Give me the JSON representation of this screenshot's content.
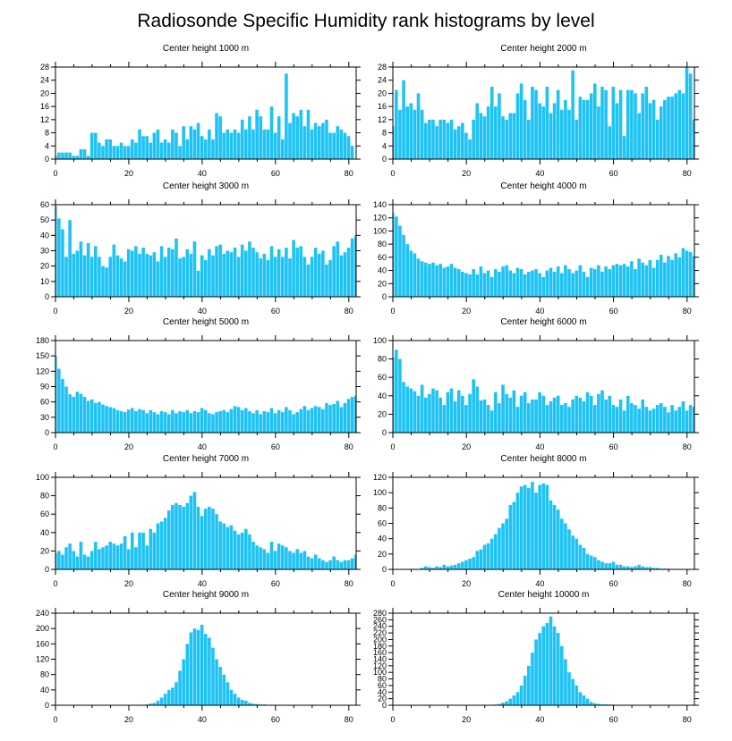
{
  "title": "Radiosonde Specific Humidity rank histograms by level",
  "bar_color": "#1ec3f5",
  "chart_data": [
    {
      "type": "bar",
      "title": "Center height 1000 m",
      "xlim": [
        0,
        82
      ],
      "ylim": [
        0,
        28
      ],
      "yticks": [
        0,
        4,
        8,
        12,
        16,
        20,
        24,
        28
      ],
      "xticks": [
        0,
        20,
        40,
        60,
        80
      ],
      "values": [
        1,
        2,
        2,
        2,
        2,
        1,
        1,
        3,
        3,
        1,
        8,
        8,
        5,
        4,
        6,
        6,
        4,
        4,
        5,
        4,
        4,
        6,
        5,
        9,
        7,
        7,
        5,
        8,
        9,
        5,
        6,
        5,
        9,
        8,
        4,
        10,
        6,
        10,
        9,
        11,
        7,
        6,
        9,
        6,
        14,
        13,
        8,
        9,
        8,
        9,
        8,
        12,
        9,
        13,
        9,
        15,
        13,
        9,
        9,
        16,
        8,
        13,
        6,
        26,
        11,
        14,
        13,
        15,
        10,
        15,
        9,
        11,
        10,
        11,
        12,
        8,
        8,
        10,
        9,
        8,
        7,
        4
      ]
    },
    {
      "type": "bar",
      "title": "Center height 2000 m",
      "xlim": [
        0,
        82
      ],
      "ylim": [
        0,
        28
      ],
      "yticks": [
        0,
        4,
        8,
        12,
        16,
        20,
        24,
        28
      ],
      "xticks": [
        0,
        20,
        40,
        60,
        80
      ],
      "values": [
        10,
        21,
        15,
        24,
        16,
        17,
        15,
        20,
        15,
        11,
        12,
        12,
        10,
        12,
        12,
        11,
        12,
        9,
        10,
        11,
        8,
        6,
        12,
        17,
        14,
        13,
        16,
        22,
        16,
        20,
        13,
        12,
        14,
        14,
        20,
        23,
        18,
        12,
        22,
        21,
        17,
        16,
        22,
        14,
        17,
        21,
        15,
        18,
        15,
        27,
        12,
        19,
        18,
        18,
        20,
        23,
        16,
        22,
        21,
        10,
        22,
        17,
        21,
        7,
        21,
        21,
        20,
        14,
        20,
        22,
        17,
        18,
        12,
        16,
        18,
        19,
        19,
        20,
        21,
        20,
        28,
        26,
        12
      ]
    },
    {
      "type": "bar",
      "title": "Center height 3000 m",
      "xlim": [
        0,
        82
      ],
      "ylim": [
        0,
        60
      ],
      "yticks": [
        0,
        10,
        20,
        30,
        40,
        50,
        60
      ],
      "xticks": [
        0,
        20,
        40,
        60,
        80
      ],
      "values": [
        59,
        51,
        44,
        26,
        50,
        28,
        30,
        36,
        27,
        35,
        26,
        33,
        26,
        20,
        19,
        26,
        34,
        27,
        25,
        23,
        31,
        30,
        33,
        28,
        32,
        28,
        27,
        29,
        23,
        33,
        26,
        32,
        31,
        38,
        25,
        26,
        31,
        28,
        36,
        17,
        27,
        24,
        31,
        27,
        33,
        34,
        28,
        30,
        29,
        32,
        26,
        34,
        30,
        36,
        32,
        29,
        25,
        28,
        24,
        33,
        26,
        31,
        26,
        32,
        25,
        37,
        32,
        33,
        26,
        21,
        26,
        32,
        28,
        30,
        21,
        24,
        33,
        36,
        27,
        29,
        32,
        38,
        40
      ]
    },
    {
      "type": "bar",
      "title": "Center height 4000 m",
      "xlim": [
        0,
        82
      ],
      "ylim": [
        0,
        140
      ],
      "yticks": [
        0,
        20,
        40,
        60,
        80,
        100,
        120,
        140
      ],
      "xticks": [
        0,
        20,
        40,
        60,
        80
      ],
      "values": [
        128,
        122,
        108,
        94,
        80,
        70,
        66,
        58,
        54,
        52,
        50,
        52,
        48,
        50,
        44,
        46,
        50,
        44,
        42,
        38,
        36,
        34,
        42,
        34,
        46,
        36,
        40,
        30,
        42,
        38,
        46,
        48,
        40,
        36,
        44,
        42,
        34,
        38,
        40,
        42,
        36,
        30,
        40,
        44,
        38,
        46,
        36,
        48,
        42,
        36,
        40,
        48,
        38,
        30,
        44,
        42,
        48,
        38,
        46,
        42,
        48,
        50,
        48,
        50,
        46,
        54,
        42,
        58,
        52,
        48,
        56,
        44,
        56,
        64,
        52,
        62,
        56,
        66,
        60,
        74,
        70,
        68,
        62
      ]
    },
    {
      "type": "bar",
      "title": "Center height 5000 m",
      "xlim": [
        0,
        82
      ],
      "ylim": [
        0,
        180
      ],
      "yticks": [
        0,
        30,
        60,
        90,
        120,
        150,
        180
      ],
      "xticks": [
        0,
        20,
        40,
        60,
        80
      ],
      "values": [
        150,
        125,
        105,
        90,
        75,
        70,
        80,
        76,
        70,
        62,
        65,
        58,
        60,
        55,
        52,
        50,
        48,
        44,
        42,
        40,
        45,
        48,
        42,
        46,
        44,
        38,
        44,
        40,
        36,
        42,
        40,
        36,
        44,
        38,
        42,
        40,
        44,
        38,
        42,
        40,
        48,
        44,
        38,
        36,
        40,
        42,
        44,
        40,
        46,
        52,
        50,
        44,
        48,
        42,
        38,
        44,
        36,
        42,
        40,
        48,
        38,
        44,
        40,
        50,
        44,
        36,
        40,
        46,
        52,
        44,
        48,
        52,
        50,
        46,
        58,
        54,
        56,
        62,
        50,
        58,
        66,
        70,
        72
      ]
    },
    {
      "type": "bar",
      "title": "Center height 6000 m",
      "xlim": [
        0,
        82
      ],
      "ylim": [
        0,
        100
      ],
      "yticks": [
        0,
        20,
        40,
        60,
        80,
        100
      ],
      "xticks": [
        0,
        20,
        40,
        60,
        80
      ],
      "values": [
        82,
        90,
        80,
        55,
        50,
        48,
        45,
        40,
        52,
        38,
        42,
        48,
        46,
        38,
        30,
        44,
        48,
        34,
        46,
        40,
        30,
        42,
        58,
        50,
        35,
        36,
        30,
        24,
        44,
        32,
        52,
        42,
        38,
        46,
        28,
        40,
        44,
        32,
        36,
        36,
        44,
        40,
        30,
        34,
        38,
        40,
        30,
        32,
        28,
        36,
        40,
        38,
        34,
        44,
        40,
        30,
        42,
        46,
        36,
        40,
        30,
        28,
        36,
        24,
        40,
        32,
        30,
        26,
        36,
        28,
        24,
        26,
        30,
        32,
        28,
        22,
        30,
        24,
        28,
        34,
        24,
        30,
        28
      ]
    },
    {
      "type": "bar",
      "title": "Center height 7000 m",
      "xlim": [
        0,
        82
      ],
      "ylim": [
        0,
        100
      ],
      "yticks": [
        0,
        20,
        40,
        60,
        80,
        100
      ],
      "xticks": [
        0,
        20,
        40,
        60,
        80
      ],
      "values": [
        18,
        20,
        16,
        24,
        28,
        20,
        14,
        30,
        16,
        14,
        20,
        30,
        22,
        24,
        26,
        30,
        28,
        26,
        28,
        36,
        22,
        40,
        24,
        40,
        40,
        26,
        44,
        40,
        50,
        52,
        56,
        64,
        70,
        72,
        70,
        68,
        72,
        80,
        84,
        68,
        58,
        66,
        68,
        66,
        60,
        52,
        50,
        46,
        48,
        42,
        38,
        40,
        44,
        38,
        30,
        26,
        24,
        22,
        18,
        30,
        20,
        28,
        26,
        24,
        20,
        18,
        22,
        18,
        20,
        14,
        12,
        16,
        12,
        10,
        8,
        10,
        14,
        10,
        8,
        10,
        10,
        12,
        16
      ]
    },
    {
      "type": "bar",
      "title": "Center height 8000 m",
      "xlim": [
        0,
        82
      ],
      "ylim": [
        0,
        120
      ],
      "yticks": [
        0,
        20,
        40,
        60,
        80,
        100,
        120
      ],
      "xticks": [
        0,
        20,
        40,
        60,
        80
      ],
      "values": [
        0,
        0,
        0,
        0,
        0,
        0,
        0,
        0,
        2,
        4,
        3,
        2,
        4,
        3,
        6,
        4,
        5,
        6,
        8,
        10,
        12,
        14,
        16,
        24,
        26,
        32,
        34,
        40,
        46,
        54,
        60,
        66,
        84,
        88,
        100,
        108,
        110,
        106,
        114,
        100,
        110,
        112,
        110,
        90,
        84,
        78,
        66,
        60,
        52,
        44,
        40,
        32,
        28,
        20,
        18,
        16,
        12,
        10,
        8,
        8,
        10,
        6,
        6,
        4,
        4,
        3,
        4,
        6,
        4,
        3,
        3,
        2,
        2,
        1,
        1,
        1,
        0,
        0,
        0,
        0,
        0,
        0,
        0
      ]
    },
    {
      "type": "bar",
      "title": "Center height 9000 m",
      "xlim": [
        0,
        82
      ],
      "ylim": [
        0,
        240
      ],
      "yticks": [
        0,
        40,
        80,
        120,
        160,
        200,
        240
      ],
      "xticks": [
        0,
        20,
        40,
        60,
        80
      ],
      "values": [
        0,
        0,
        0,
        0,
        0,
        0,
        0,
        0,
        0,
        0,
        0,
        0,
        0,
        0,
        0,
        0,
        0,
        0,
        0,
        0,
        0,
        0,
        0,
        0,
        0,
        2,
        4,
        6,
        12,
        20,
        30,
        40,
        46,
        60,
        90,
        120,
        160,
        190,
        200,
        196,
        210,
        186,
        176,
        150,
        120,
        100,
        80,
        60,
        40,
        30,
        20,
        14,
        12,
        6,
        4,
        3,
        2,
        2,
        1,
        1,
        1,
        0,
        0,
        0,
        0,
        0,
        0,
        0,
        0,
        0,
        0,
        0,
        0,
        0,
        0,
        0,
        0,
        0,
        0,
        0,
        0,
        0,
        0
      ]
    },
    {
      "type": "bar",
      "title": "Center height 10000 m",
      "xlim": [
        0,
        82
      ],
      "ylim": [
        0,
        280
      ],
      "yticks": [
        0,
        20,
        40,
        60,
        80,
        100,
        120,
        140,
        160,
        180,
        200,
        220,
        240,
        260,
        280
      ],
      "xticks": [
        0,
        20,
        40,
        60,
        80
      ],
      "values": [
        0,
        0,
        0,
        0,
        0,
        0,
        0,
        0,
        0,
        0,
        0,
        0,
        0,
        0,
        0,
        0,
        0,
        0,
        0,
        0,
        0,
        0,
        0,
        0,
        0,
        0,
        0,
        0,
        2,
        4,
        8,
        12,
        20,
        30,
        40,
        60,
        90,
        120,
        160,
        200,
        220,
        240,
        250,
        270,
        240,
        220,
        180,
        140,
        100,
        80,
        60,
        40,
        30,
        20,
        10,
        6,
        4,
        3,
        3,
        2,
        2,
        1,
        1,
        1,
        1,
        0,
        0,
        0,
        0,
        0,
        0,
        0,
        0,
        0,
        0,
        0,
        0,
        0,
        0,
        0,
        0,
        0,
        0
      ]
    }
  ]
}
